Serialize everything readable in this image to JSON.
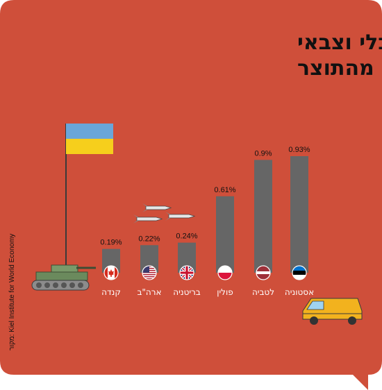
{
  "title_lines": [
    "סיוע הומניטרי, כלכלי וצבאי",
    "לאוקראינה, כאחוז מהתוצר"
  ],
  "source": "מקור: Kiel Institute for World Economy",
  "colors": {
    "background": "#cf4f3a",
    "bar": "#666666",
    "text": "#111111",
    "label": "#ffffff"
  },
  "chart_data": {
    "type": "bar",
    "title": "סיוע הומניטרי, כלכלי וצבאי לאוקראינה, כאחוז מהתוצר",
    "categories": [
      "קנדה",
      "ארה\"ב",
      "בריטניה",
      "פולין",
      "לטביה",
      "אסטוניה"
    ],
    "values": [
      0.19,
      0.22,
      0.24,
      0.61,
      0.9,
      0.93
    ],
    "value_labels": [
      "0.19%",
      "0.22%",
      "0.24%",
      "0.61%",
      "0.9%",
      "0.93%"
    ],
    "flags": [
      "canada-flag-icon",
      "usa-flag-icon",
      "uk-flag-icon",
      "poland-flag-icon",
      "latvia-flag-icon",
      "estonia-flag-icon"
    ],
    "xlabel": "",
    "ylabel": "",
    "ylim": [
      0,
      0.93
    ],
    "grid": false
  }
}
